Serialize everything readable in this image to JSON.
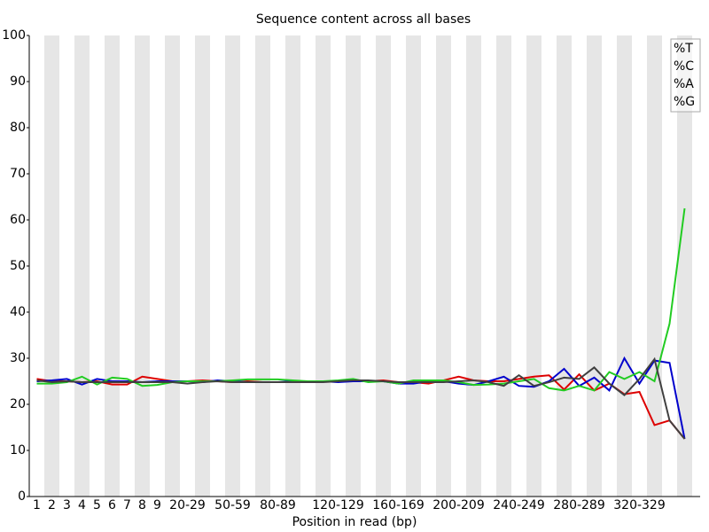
{
  "chart_data": {
    "type": "line",
    "title": "Sequence content across all bases",
    "x_label": "Position in read (bp)",
    "categories": [
      "1",
      "2",
      "3",
      "4",
      "5",
      "6",
      "7",
      "8",
      "9",
      null,
      "20-29",
      null,
      null,
      "50-59",
      null,
      null,
      "80-89",
      null,
      null,
      null,
      "120-129",
      null,
      null,
      null,
      "160-169",
      null,
      null,
      null,
      "200-209",
      null,
      null,
      null,
      "240-249",
      null,
      null,
      null,
      "280-289",
      null,
      null,
      null,
      "320-329",
      null,
      null,
      null
    ],
    "ylim": [
      0,
      100
    ],
    "yticks": [
      0,
      10,
      20,
      30,
      40,
      50,
      60,
      70,
      80,
      90,
      100
    ],
    "stripes": true,
    "legend": "top-right",
    "series": [
      {
        "name": "%T",
        "color": "#dd0000",
        "values": [
          25.5,
          25,
          25,
          24.8,
          25,
          24.3,
          24.3,
          26,
          25.5,
          25,
          25,
          25.2,
          25,
          24.8,
          25,
          24.8,
          24.8,
          24.8,
          25,
          25,
          25,
          25,
          25,
          25.2,
          24.8,
          24.8,
          24.5,
          25.2,
          26,
          25.2,
          25,
          25,
          25.5,
          26,
          26.3,
          23.2,
          26.5,
          23,
          24.5,
          22.2,
          22.7,
          15.5,
          16.5,
          12.5
        ]
      },
      {
        "name": "%C",
        "color": "#0000cc",
        "values": [
          25,
          25.2,
          25.5,
          24.3,
          25.5,
          25,
          25,
          24.8,
          25,
          25,
          25,
          24.8,
          25.2,
          25,
          24.8,
          24.8,
          24.8,
          25,
          25,
          25,
          24.8,
          25,
          25,
          25,
          24.5,
          24.5,
          25,
          25,
          24.5,
          24.2,
          25,
          26,
          24,
          23.8,
          25,
          27.7,
          24,
          25.8,
          23,
          30,
          24.5,
          29.5,
          29,
          12.5
        ]
      },
      {
        "name": "%A",
        "color": "#22cc22",
        "values": [
          24.5,
          24.5,
          24.8,
          26,
          24.3,
          25.8,
          25.5,
          24,
          24.2,
          24.8,
          25,
          25,
          25,
          25.2,
          25.4,
          25.4,
          25.4,
          25.2,
          25,
          25,
          25.2,
          25.5,
          24.8,
          25,
          24.5,
          25.2,
          25.2,
          25.2,
          24.8,
          24.2,
          24.3,
          24.5,
          25,
          25.5,
          23.5,
          23,
          24,
          23,
          27,
          25.5,
          27,
          25,
          37.5,
          62.5
        ]
      },
      {
        "name": "%G",
        "color": "#404040",
        "values": [
          25.2,
          24.8,
          25,
          24.8,
          24.8,
          24.8,
          24.8,
          24.8,
          24.8,
          24.8,
          24.5,
          24.8,
          25,
          24.8,
          24.8,
          24.8,
          24.8,
          24.8,
          24.8,
          24.8,
          25,
          25.2,
          25.2,
          25,
          24.8,
          24.8,
          24.8,
          24.8,
          25,
          25.2,
          24.8,
          24,
          26.3,
          24,
          24.8,
          25.8,
          25.5,
          28,
          24.5,
          22,
          25.5,
          29.8,
          16.5,
          12.5
        ]
      }
    ]
  }
}
